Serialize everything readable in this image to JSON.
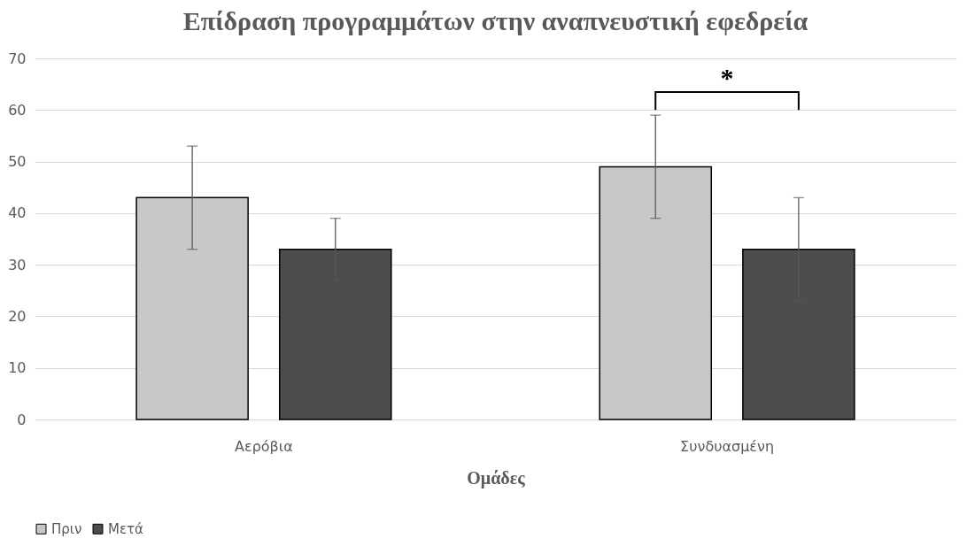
{
  "chart_data": {
    "type": "bar",
    "title": "Επίδραση προγραμμάτων στην αναπνευστική εφεδρεία",
    "xlabel": "Ομάδες",
    "categories": [
      "Αερόβια",
      "Συνδυασμένη"
    ],
    "series": [
      {
        "name": "Πριν",
        "color": "#c8c8c8",
        "values": [
          43,
          49
        ],
        "errors": [
          10,
          10
        ]
      },
      {
        "name": "Μετά",
        "color": "#4d4d4d",
        "values": [
          33,
          33
        ],
        "errors": [
          6,
          10
        ]
      }
    ],
    "ylim": [
      0,
      70
    ],
    "yticks": [
      0,
      10,
      20,
      30,
      40,
      50,
      60,
      70
    ],
    "grid": "y",
    "legend": "bottom",
    "annotations": [
      "*"
    ]
  }
}
